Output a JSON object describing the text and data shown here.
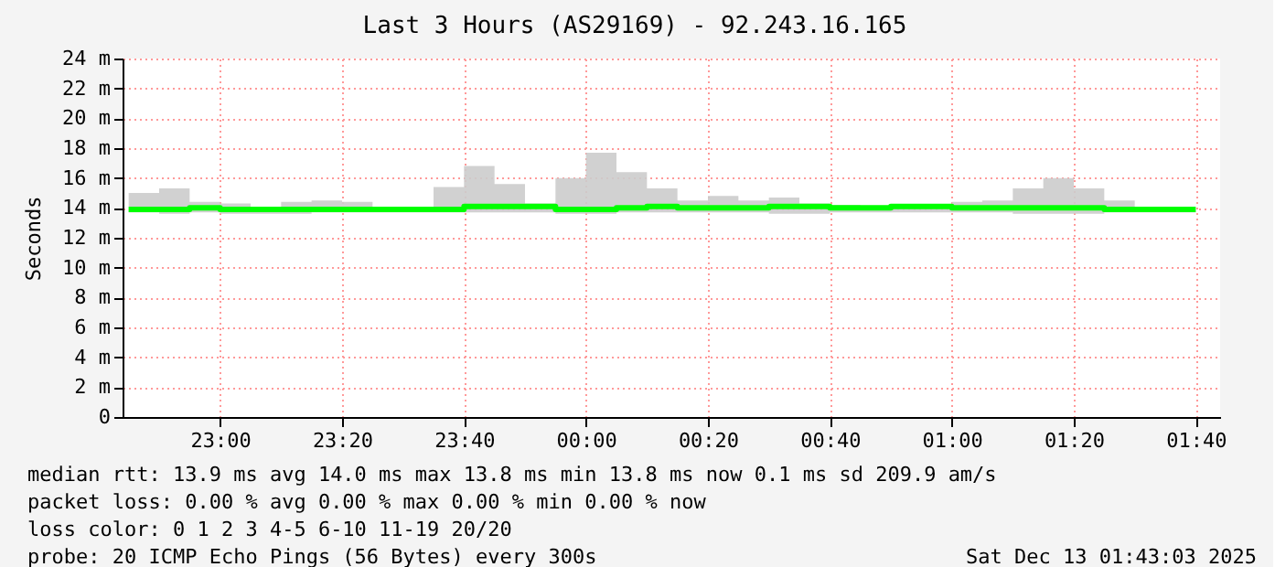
{
  "chart_data": {
    "type": "step",
    "title": "Last 3 Hours (AS29169) - 92.243.16.165",
    "ylabel": "Seconds",
    "x": [
      "2025-12-12T22:45",
      "2025-12-12T22:50",
      "2025-12-12T22:55",
      "2025-12-12T23:00",
      "2025-12-12T23:05",
      "2025-12-12T23:10",
      "2025-12-12T23:15",
      "2025-12-12T23:20",
      "2025-12-12T23:25",
      "2025-12-12T23:30",
      "2025-12-12T23:35",
      "2025-12-12T23:40",
      "2025-12-12T23:45",
      "2025-12-12T23:50",
      "2025-12-12T23:55",
      "2025-12-13T00:00",
      "2025-12-13T00:05",
      "2025-12-13T00:10",
      "2025-12-13T00:15",
      "2025-12-13T00:20",
      "2025-12-13T00:25",
      "2025-12-13T00:30",
      "2025-12-13T00:35",
      "2025-12-13T00:40",
      "2025-12-13T00:45",
      "2025-12-13T00:50",
      "2025-12-13T00:55",
      "2025-12-13T01:00",
      "2025-12-13T01:05",
      "2025-12-13T01:10",
      "2025-12-13T01:15",
      "2025-12-13T01:20",
      "2025-12-13T01:25",
      "2025-12-13T01:30",
      "2025-12-13T01:35",
      "2025-12-13T01:40"
    ],
    "series": [
      {
        "color": "#00ff00",
        "values": [
          13.9,
          13.9,
          14.0,
          13.9,
          13.9,
          13.9,
          13.9,
          13.9,
          13.9,
          13.9,
          13.9,
          14.1,
          14.1,
          14.1,
          13.9,
          13.9,
          14.0,
          14.1,
          14.0,
          14.0,
          14.0,
          14.1,
          14.1,
          14.0,
          14.0,
          14.1,
          14.1,
          14.0,
          14.0,
          14.0,
          14.0,
          14.0,
          13.9,
          13.9,
          13.9,
          13.9
        ],
        "lower": [
          13.7,
          13.6,
          13.7,
          13.6,
          13.6,
          13.6,
          13.7,
          13.7,
          13.7,
          13.7,
          13.7,
          13.7,
          13.7,
          13.7,
          13.6,
          13.6,
          13.7,
          13.7,
          13.7,
          13.7,
          13.7,
          13.6,
          13.6,
          13.7,
          13.7,
          13.7,
          13.7,
          13.7,
          13.7,
          13.6,
          13.6,
          13.6,
          13.7,
          13.7,
          13.7,
          13.7
        ],
        "upper": [
          15.0,
          15.3,
          14.4,
          14.3,
          14.0,
          14.4,
          14.5,
          14.4,
          14.0,
          14.0,
          15.4,
          16.8,
          15.6,
          14.3,
          16.0,
          17.7,
          16.4,
          15.3,
          14.5,
          14.8,
          14.5,
          14.7,
          14.3,
          14.2,
          14.1,
          14.0,
          14.2,
          14.4,
          14.5,
          15.3,
          16.0,
          15.3,
          14.5,
          14.0,
          14.0,
          14.0
        ]
      }
    ],
    "xlim": [
      "2025-12-12T22:44",
      "2025-12-13T01:44"
    ],
    "xticks": [
      {
        "value": "2025-12-12T23:00",
        "label": "23:00"
      },
      {
        "value": "2025-12-12T23:20",
        "label": "23:20"
      },
      {
        "value": "2025-12-12T23:40",
        "label": "23:40"
      },
      {
        "value": "2025-12-13T00:00",
        "label": "00:00"
      },
      {
        "value": "2025-12-13T00:20",
        "label": "00:20"
      },
      {
        "value": "2025-12-13T00:40",
        "label": "00:40"
      },
      {
        "value": "2025-12-13T01:00",
        "label": "01:00"
      },
      {
        "value": "2025-12-13T01:20",
        "label": "01:20"
      },
      {
        "value": "2025-12-13T01:40",
        "label": "01:40"
      }
    ],
    "ylim": [
      0,
      24
    ],
    "yticks": [
      0,
      {
        "value": 2,
        "label": "2 m"
      },
      {
        "value": 4,
        "label": "4 m"
      },
      {
        "value": 6,
        "label": "6 m"
      },
      {
        "value": 8,
        "label": "8 m"
      },
      {
        "value": 10,
        "label": "10 m"
      },
      {
        "value": 12,
        "label": "12 m"
      },
      {
        "value": 14,
        "label": "14 m"
      },
      {
        "value": 16,
        "label": "16 m"
      },
      {
        "value": 18,
        "label": "18 m"
      },
      {
        "value": 20,
        "label": "20 m"
      },
      {
        "value": 22,
        "label": "22 m"
      },
      {
        "value": 24,
        "label": "24 m"
      }
    ],
    "grid": true,
    "annotations": [
      "median rtt:  13.9 ms avg  14.0 ms max  13.8 ms min  13.8 ms now  0.1 ms sd  209.9   am/s",
      "packet loss: 0.00 % avg  0.00 % max  0.00 % min  0.00 % now",
      "loss color:  0  1  2  3  4-5  6-10  11-19  20/20",
      "probe:       20 ICMP Echo Pings (56 Bytes) every 300s",
      "Sat Dec 13 01:43:03 2025"
    ]
  }
}
